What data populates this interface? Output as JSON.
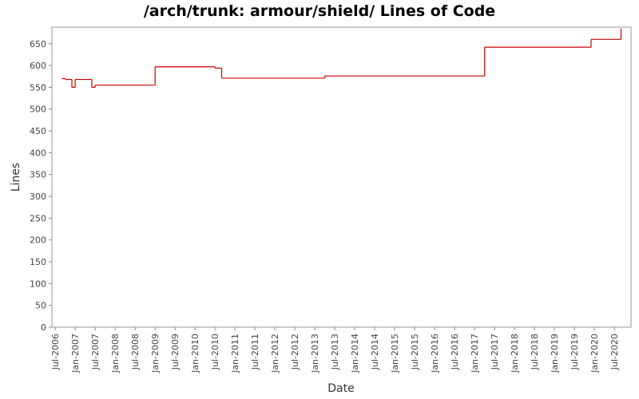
{
  "chart_data": {
    "type": "step",
    "title": "/arch/trunk: armour/shield/ Lines of Code",
    "x_label": "Date",
    "y_label": "Lines",
    "x": [
      "2006-09",
      "2006-10",
      "2006-12",
      "2007-01",
      "2007-06",
      "2007-07",
      "2009-01",
      "2010-07",
      "2010-09",
      "2013-04",
      "2017-04",
      "2019-12",
      "2020-09"
    ],
    "values": [
      570,
      568,
      550,
      568,
      550,
      555,
      597,
      594,
      571,
      576,
      642,
      660,
      685
    ],
    "color": "#cc0000",
    "xlim": [
      "2006-06",
      "2020-12"
    ],
    "xticks": [
      {
        "value": "2006-07",
        "label": "Jul-2006"
      },
      {
        "value": "2007-01",
        "label": "Jan-2007"
      },
      {
        "value": "2007-07",
        "label": "Jul-2007"
      },
      {
        "value": "2008-01",
        "label": "Jan-2008"
      },
      {
        "value": "2008-07",
        "label": "Jul-2008"
      },
      {
        "value": "2009-01",
        "label": "Jan-2009"
      },
      {
        "value": "2009-07",
        "label": "Jul-2009"
      },
      {
        "value": "2010-01",
        "label": "Jan-2010"
      },
      {
        "value": "2010-07",
        "label": "Jul-2010"
      },
      {
        "value": "2011-01",
        "label": "Jan-2011"
      },
      {
        "value": "2011-07",
        "label": "Jul-2011"
      },
      {
        "value": "2012-01",
        "label": "Jan-2012"
      },
      {
        "value": "2012-07",
        "label": "Jul-2012"
      },
      {
        "value": "2013-01",
        "label": "Jan-2013"
      },
      {
        "value": "2013-07",
        "label": "Jul-2013"
      },
      {
        "value": "2014-01",
        "label": "Jan-2014"
      },
      {
        "value": "2014-07",
        "label": "Jul-2014"
      },
      {
        "value": "2015-01",
        "label": "Jan-2015"
      },
      {
        "value": "2015-07",
        "label": "Jul-2015"
      },
      {
        "value": "2016-01",
        "label": "Jan-2016"
      },
      {
        "value": "2016-07",
        "label": "Jul-2016"
      },
      {
        "value": "2017-01",
        "label": "Jan-2017"
      },
      {
        "value": "2017-07",
        "label": "Jul-2017"
      },
      {
        "value": "2018-01",
        "label": "Jan-2018"
      },
      {
        "value": "2018-07",
        "label": "Jul-2018"
      },
      {
        "value": "2019-01",
        "label": "Jan-2019"
      },
      {
        "value": "2019-07",
        "label": "Jul-2019"
      },
      {
        "value": "2020-01",
        "label": "Jan-2020"
      },
      {
        "value": "2020-07",
        "label": "Jul-2020"
      }
    ],
    "ylim": [
      0,
      688
    ],
    "yticks": [
      0,
      50,
      100,
      150,
      200,
      250,
      300,
      350,
      400,
      450,
      500,
      550,
      600,
      650
    ]
  }
}
